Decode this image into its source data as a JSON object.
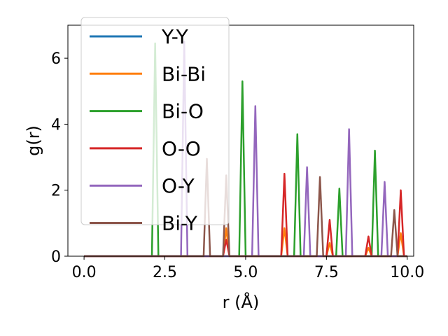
{
  "chart_data": {
    "type": "line",
    "xlabel": "r (Å)",
    "ylabel": "g(r)",
    "xlim": [
      -0.5,
      10.2
    ],
    "ylim": [
      0,
      7.0
    ],
    "xticks": [
      {
        "value": 0.0,
        "label": "0.0"
      },
      {
        "value": 2.5,
        "label": "2.5"
      },
      {
        "value": 5.0,
        "label": "5.0"
      },
      {
        "value": 7.5,
        "label": "7.5"
      },
      {
        "value": 10.0,
        "label": "10.0"
      }
    ],
    "yticks": [
      {
        "value": 0,
        "label": "0"
      },
      {
        "value": 2,
        "label": "2"
      },
      {
        "value": 4,
        "label": "4"
      },
      {
        "value": 6,
        "label": "6"
      }
    ],
    "grid": false,
    "legend_position": "top-left",
    "series": [
      {
        "name": "Y-Y",
        "color": "#1f77b4",
        "peaks": []
      },
      {
        "name": "Bi-Bi",
        "color": "#ff7f0e",
        "peaks": [
          [
            4.4,
            0.85
          ],
          [
            6.2,
            0.85
          ],
          [
            7.6,
            0.4
          ],
          [
            8.8,
            0.25
          ],
          [
            9.8,
            0.7
          ]
        ]
      },
      {
        "name": "Bi-O",
        "color": "#2ca02c",
        "peaks": [
          [
            2.2,
            6.45
          ],
          [
            4.9,
            5.3
          ],
          [
            6.6,
            3.7
          ],
          [
            7.9,
            2.05
          ],
          [
            9.0,
            3.2
          ]
        ]
      },
      {
        "name": "O-O",
        "color": "#d62728",
        "peaks": [
          [
            4.4,
            0.5
          ],
          [
            6.2,
            2.5
          ],
          [
            7.6,
            1.1
          ],
          [
            8.8,
            0.6
          ],
          [
            9.8,
            2.0
          ]
        ]
      },
      {
        "name": "O-Y",
        "color": "#9467bd",
        "peaks": [
          [
            3.1,
            6.5
          ],
          [
            5.3,
            4.55
          ],
          [
            6.9,
            2.7
          ],
          [
            8.2,
            3.85
          ],
          [
            9.3,
            2.25
          ]
        ]
      },
      {
        "name": "Bi-Y",
        "color": "#8c564b",
        "peaks": [
          [
            3.8,
            2.95
          ],
          [
            4.4,
            2.45
          ],
          [
            7.3,
            2.4
          ],
          [
            9.6,
            1.4
          ]
        ]
      }
    ]
  }
}
